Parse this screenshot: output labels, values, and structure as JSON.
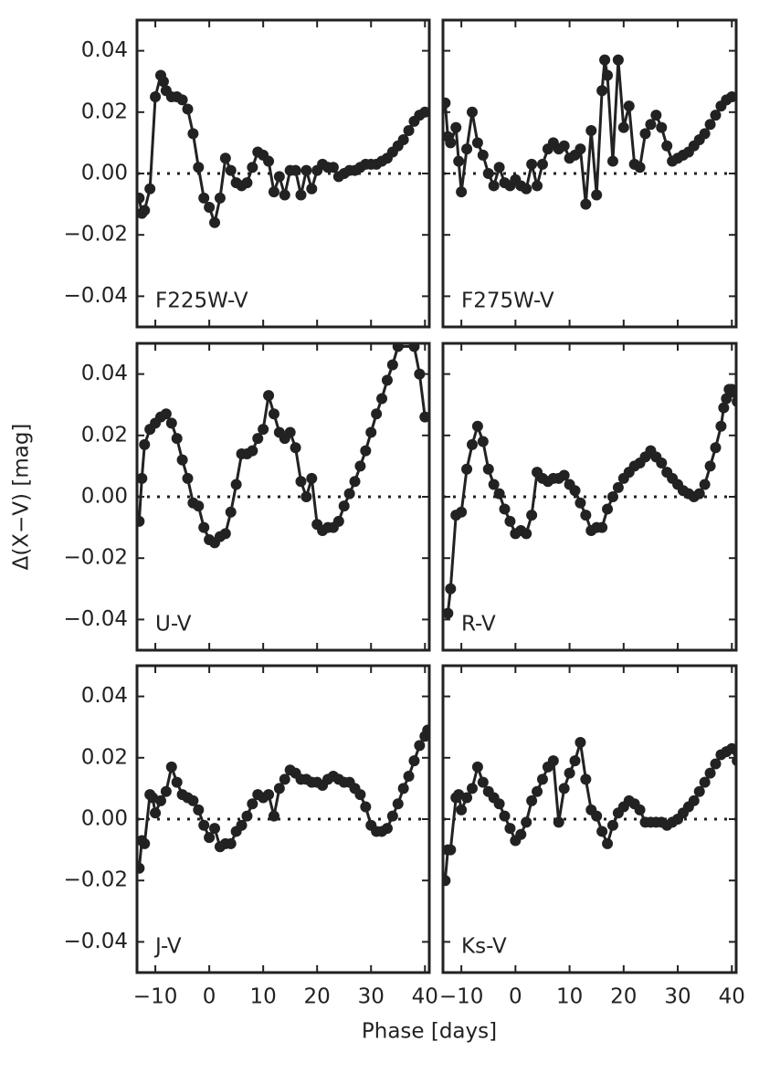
{
  "figure": {
    "xlabel": "Phase [days]",
    "ylabel": "Δ(X−V) [mag]"
  },
  "chart_data": [
    {
      "type": "line",
      "label": "F225W-V",
      "color": "#222222",
      "zero_line": true,
      "xlim": [
        -13.4,
        40.8
      ],
      "ylim": [
        -0.05,
        0.05
      ],
      "xticks": [
        {
          "value": -10,
          "label": "−10"
        },
        0,
        10,
        20,
        30,
        40
      ],
      "yticks": [
        {
          "value": -0.04,
          "label": "−0.04"
        },
        {
          "value": -0.02,
          "label": "−0.02"
        },
        {
          "value": 0,
          "label": "0.00"
        },
        {
          "value": 0.02,
          "label": "0.02"
        },
        {
          "value": 0.04,
          "label": "0.04"
        }
      ],
      "x": [
        -13,
        -12.5,
        -12,
        -11,
        -10,
        -9,
        -8.5,
        -8,
        -7,
        -6,
        -5,
        -4,
        -3,
        -2,
        -1,
        0,
        1,
        2,
        3,
        4,
        5,
        6,
        7,
        8,
        9,
        10,
        11,
        12,
        13,
        14,
        15,
        16,
        17,
        18,
        19,
        20,
        21,
        22,
        23,
        24,
        25,
        26,
        27,
        28,
        29,
        30,
        31,
        32,
        33,
        34,
        35,
        36,
        37,
        38,
        39,
        40
      ],
      "values": [
        -0.008,
        -0.013,
        -0.012,
        -0.005,
        0.025,
        0.032,
        0.03,
        0.027,
        0.025,
        0.025,
        0.024,
        0.021,
        0.013,
        0.002,
        -0.008,
        -0.011,
        -0.016,
        -0.008,
        0.005,
        0.001,
        -0.003,
        -0.004,
        -0.003,
        0.002,
        0.007,
        0.006,
        0.004,
        -0.006,
        -0.001,
        -0.007,
        0.001,
        0.001,
        -0.007,
        0.001,
        -0.005,
        0.001,
        0.003,
        0.002,
        0.002,
        -0.001,
        0.0,
        0.001,
        0.001,
        0.002,
        0.003,
        0.003,
        0.003,
        0.004,
        0.005,
        0.007,
        0.009,
        0.011,
        0.014,
        0.017,
        0.019,
        0.02
      ]
    },
    {
      "type": "line",
      "label": "F275W-V",
      "color": "#222222",
      "zero_line": true,
      "xlim": [
        -13.4,
        40.8
      ],
      "ylim": [
        -0.05,
        0.05
      ],
      "xticks": [
        {
          "value": -10,
          "label": "−10"
        },
        0,
        10,
        20,
        30,
        40
      ],
      "yticks": [
        {
          "value": -0.04,
          "label": "−0.04"
        },
        {
          "value": -0.02,
          "label": "−0.02"
        },
        {
          "value": 0,
          "label": "0.00"
        },
        {
          "value": 0.02,
          "label": "0.02"
        },
        {
          "value": 0.04,
          "label": "0.04"
        }
      ],
      "x": [
        -13,
        -12.5,
        -12,
        -11,
        -10.5,
        -10,
        -9,
        -8,
        -7,
        -6,
        -5,
        -4,
        -3,
        -2,
        -1,
        0,
        1,
        2,
        3,
        4,
        5,
        6,
        7,
        8,
        9,
        10,
        11,
        12,
        13,
        14,
        15,
        16,
        16.5,
        17,
        18,
        19,
        20,
        21,
        22,
        23,
        24,
        25,
        26,
        27,
        28,
        29,
        30,
        31,
        32,
        33,
        34,
        35,
        36,
        37,
        38,
        39,
        40
      ],
      "values": [
        0.023,
        0.012,
        0.01,
        0.015,
        0.004,
        -0.006,
        0.008,
        0.02,
        0.01,
        0.006,
        0.0,
        -0.004,
        0.002,
        -0.003,
        -0.004,
        -0.002,
        -0.004,
        -0.005,
        0.003,
        -0.004,
        0.003,
        0.008,
        0.01,
        0.008,
        0.009,
        0.005,
        0.006,
        0.008,
        -0.01,
        0.014,
        -0.007,
        0.027,
        0.037,
        0.032,
        0.004,
        0.037,
        0.015,
        0.022,
        0.003,
        0.002,
        0.013,
        0.016,
        0.019,
        0.015,
        0.009,
        0.004,
        0.005,
        0.006,
        0.007,
        0.009,
        0.011,
        0.013,
        0.016,
        0.019,
        0.022,
        0.024,
        0.025
      ]
    },
    {
      "type": "line",
      "label": "U-V",
      "color": "#222222",
      "zero_line": true,
      "xlim": [
        -13.4,
        40.8
      ],
      "ylim": [
        -0.05,
        0.05
      ],
      "xticks": [
        {
          "value": -10,
          "label": "−10"
        },
        0,
        10,
        20,
        30,
        40
      ],
      "yticks": [
        {
          "value": -0.04,
          "label": "−0.04"
        },
        {
          "value": -0.02,
          "label": "−0.02"
        },
        {
          "value": 0,
          "label": "0.00"
        },
        {
          "value": 0.02,
          "label": "0.02"
        },
        {
          "value": 0.04,
          "label": "0.04"
        }
      ],
      "x": [
        -13,
        -12.5,
        -12,
        -11,
        -10,
        -9,
        -8,
        -7,
        -6,
        -5,
        -4,
        -3,
        -2,
        -1,
        0,
        1,
        2,
        3,
        4,
        5,
        6,
        7,
        8,
        9,
        10,
        11,
        12,
        13,
        14,
        15,
        16,
        17,
        18,
        19,
        20,
        21,
        22,
        23,
        24,
        25,
        26,
        27,
        28,
        29,
        30,
        31,
        32,
        33,
        34,
        35,
        38,
        39,
        40
      ],
      "values": [
        -0.008,
        0.006,
        0.017,
        0.022,
        0.024,
        0.026,
        0.027,
        0.024,
        0.019,
        0.012,
        0.006,
        -0.002,
        -0.003,
        -0.01,
        -0.014,
        -0.015,
        -0.013,
        -0.012,
        -0.005,
        0.004,
        0.014,
        0.014,
        0.015,
        0.019,
        0.022,
        0.033,
        0.027,
        0.021,
        0.019,
        0.021,
        0.016,
        0.005,
        0.0,
        0.006,
        -0.009,
        -0.011,
        -0.01,
        -0.01,
        -0.008,
        -0.003,
        0.001,
        0.005,
        0.01,
        0.015,
        0.021,
        0.027,
        0.032,
        0.038,
        0.043,
        0.049,
        0.049,
        0.04,
        0.026
      ]
    },
    {
      "type": "line",
      "label": "R-V",
      "color": "#222222",
      "zero_line": true,
      "xlim": [
        -13.4,
        40.8
      ],
      "ylim": [
        -0.05,
        0.05
      ],
      "xticks": [
        {
          "value": -10,
          "label": "−10"
        },
        0,
        10,
        20,
        30,
        40
      ],
      "yticks": [
        {
          "value": -0.04,
          "label": "−0.04"
        },
        {
          "value": -0.02,
          "label": "−0.02"
        },
        {
          "value": 0,
          "label": "0.00"
        },
        {
          "value": 0.02,
          "label": "0.02"
        },
        {
          "value": 0.04,
          "label": "0.04"
        }
      ],
      "x": [
        -12.5,
        -12,
        -11,
        -10,
        -9,
        -8,
        -7,
        -6,
        -5,
        -4,
        -3,
        -2,
        -1,
        0,
        1,
        2,
        3,
        4,
        5,
        6,
        7,
        8,
        9,
        10,
        11,
        12,
        13,
        14,
        15,
        16,
        17,
        18,
        19,
        20,
        21,
        22,
        23,
        24,
        25,
        26,
        27,
        28,
        29,
        30,
        31,
        32,
        33,
        34,
        35,
        36,
        37,
        38,
        38.5,
        39,
        39.5,
        40,
        40.5,
        41
      ],
      "values": [
        -0.038,
        -0.03,
        -0.006,
        -0.005,
        0.009,
        0.017,
        0.023,
        0.018,
        0.009,
        0.004,
        0.001,
        -0.004,
        -0.008,
        -0.012,
        -0.011,
        -0.012,
        -0.006,
        0.008,
        0.006,
        0.005,
        0.006,
        0.006,
        0.007,
        0.004,
        0.002,
        -0.002,
        -0.006,
        -0.011,
        -0.01,
        -0.01,
        -0.004,
        0.0,
        0.003,
        0.006,
        0.008,
        0.01,
        0.011,
        0.013,
        0.015,
        0.013,
        0.011,
        0.008,
        0.006,
        0.004,
        0.002,
        0.001,
        0.0,
        0.001,
        0.004,
        0.01,
        0.016,
        0.023,
        0.029,
        0.032,
        0.035,
        0.035,
        0.034,
        0.031
      ]
    },
    {
      "type": "line",
      "label": "J-V",
      "color": "#222222",
      "zero_line": true,
      "xlim": [
        -13.4,
        40.8
      ],
      "ylim": [
        -0.05,
        0.05
      ],
      "xticks": [
        {
          "value": -10,
          "label": "−10"
        },
        0,
        10,
        20,
        30,
        40
      ],
      "yticks": [
        {
          "value": -0.04,
          "label": "−0.04"
        },
        {
          "value": -0.02,
          "label": "−0.02"
        },
        {
          "value": 0,
          "label": "0.00"
        },
        {
          "value": 0.02,
          "label": "0.02"
        },
        {
          "value": 0.04,
          "label": "0.04"
        }
      ],
      "x": [
        -13,
        -12.5,
        -12,
        -11,
        -10.5,
        -10,
        -9,
        -8,
        -7,
        -6,
        -5,
        -4,
        -3,
        -2,
        -1,
        0,
        1,
        2,
        3,
        4,
        5,
        6,
        7,
        8,
        9,
        10,
        11,
        12,
        13,
        14,
        15,
        16,
        17,
        18,
        19,
        20,
        21,
        22,
        23,
        24,
        25,
        26,
        27,
        28,
        29,
        30,
        31,
        32,
        33,
        34,
        35,
        36,
        37,
        38,
        39,
        40,
        40.5
      ],
      "values": [
        -0.016,
        -0.007,
        -0.008,
        0.008,
        0.007,
        0.002,
        0.006,
        0.009,
        0.017,
        0.012,
        0.008,
        0.007,
        0.006,
        0.003,
        -0.002,
        -0.006,
        -0.003,
        -0.009,
        -0.008,
        -0.008,
        -0.004,
        -0.002,
        0.001,
        0.005,
        0.008,
        0.007,
        0.008,
        0.001,
        0.01,
        0.013,
        0.016,
        0.015,
        0.013,
        0.013,
        0.012,
        0.012,
        0.011,
        0.013,
        0.014,
        0.013,
        0.012,
        0.012,
        0.01,
        0.008,
        0.004,
        -0.002,
        -0.004,
        -0.004,
        -0.003,
        0.001,
        0.005,
        0.01,
        0.014,
        0.019,
        0.024,
        0.027,
        0.029
      ]
    },
    {
      "type": "line",
      "label": "Ks-V",
      "color": "#222222",
      "zero_line": true,
      "xlim": [
        -13.4,
        40.8
      ],
      "ylim": [
        -0.05,
        0.05
      ],
      "xticks": [
        {
          "value": -10,
          "label": "−10"
        },
        0,
        10,
        20,
        30,
        40
      ],
      "yticks": [
        {
          "value": -0.04,
          "label": "−0.04"
        },
        {
          "value": -0.02,
          "label": "−0.02"
        },
        {
          "value": 0,
          "label": "0.00"
        },
        {
          "value": 0.02,
          "label": "0.02"
        },
        {
          "value": 0.04,
          "label": "0.04"
        }
      ],
      "x": [
        -13,
        -12.5,
        -12,
        -11,
        -10.5,
        -10,
        -9,
        -8,
        -7,
        -6,
        -5,
        -4,
        -3,
        -2,
        -1,
        0,
        1,
        2,
        3,
        4,
        5,
        6,
        7,
        8,
        9,
        10,
        11,
        12,
        13,
        14,
        15,
        16,
        17,
        18,
        19,
        20,
        21,
        22,
        23,
        24,
        25,
        26,
        27,
        28,
        29,
        30,
        31,
        32,
        33,
        34,
        35,
        36,
        37,
        38,
        39,
        40,
        41
      ],
      "values": [
        -0.02,
        -0.01,
        -0.01,
        0.007,
        0.008,
        0.003,
        0.007,
        0.01,
        0.017,
        0.012,
        0.009,
        0.007,
        0.005,
        0.001,
        -0.003,
        -0.007,
        -0.005,
        -0.001,
        0.006,
        0.009,
        0.013,
        0.017,
        0.019,
        -0.001,
        0.01,
        0.015,
        0.019,
        0.025,
        0.013,
        0.003,
        0.001,
        -0.004,
        -0.008,
        -0.002,
        0.002,
        0.004,
        0.006,
        0.005,
        0.003,
        -0.001,
        -0.001,
        -0.001,
        -0.001,
        -0.002,
        -0.001,
        0.0,
        0.002,
        0.004,
        0.006,
        0.009,
        0.012,
        0.015,
        0.018,
        0.021,
        0.022,
        0.023,
        0.019
      ]
    }
  ]
}
